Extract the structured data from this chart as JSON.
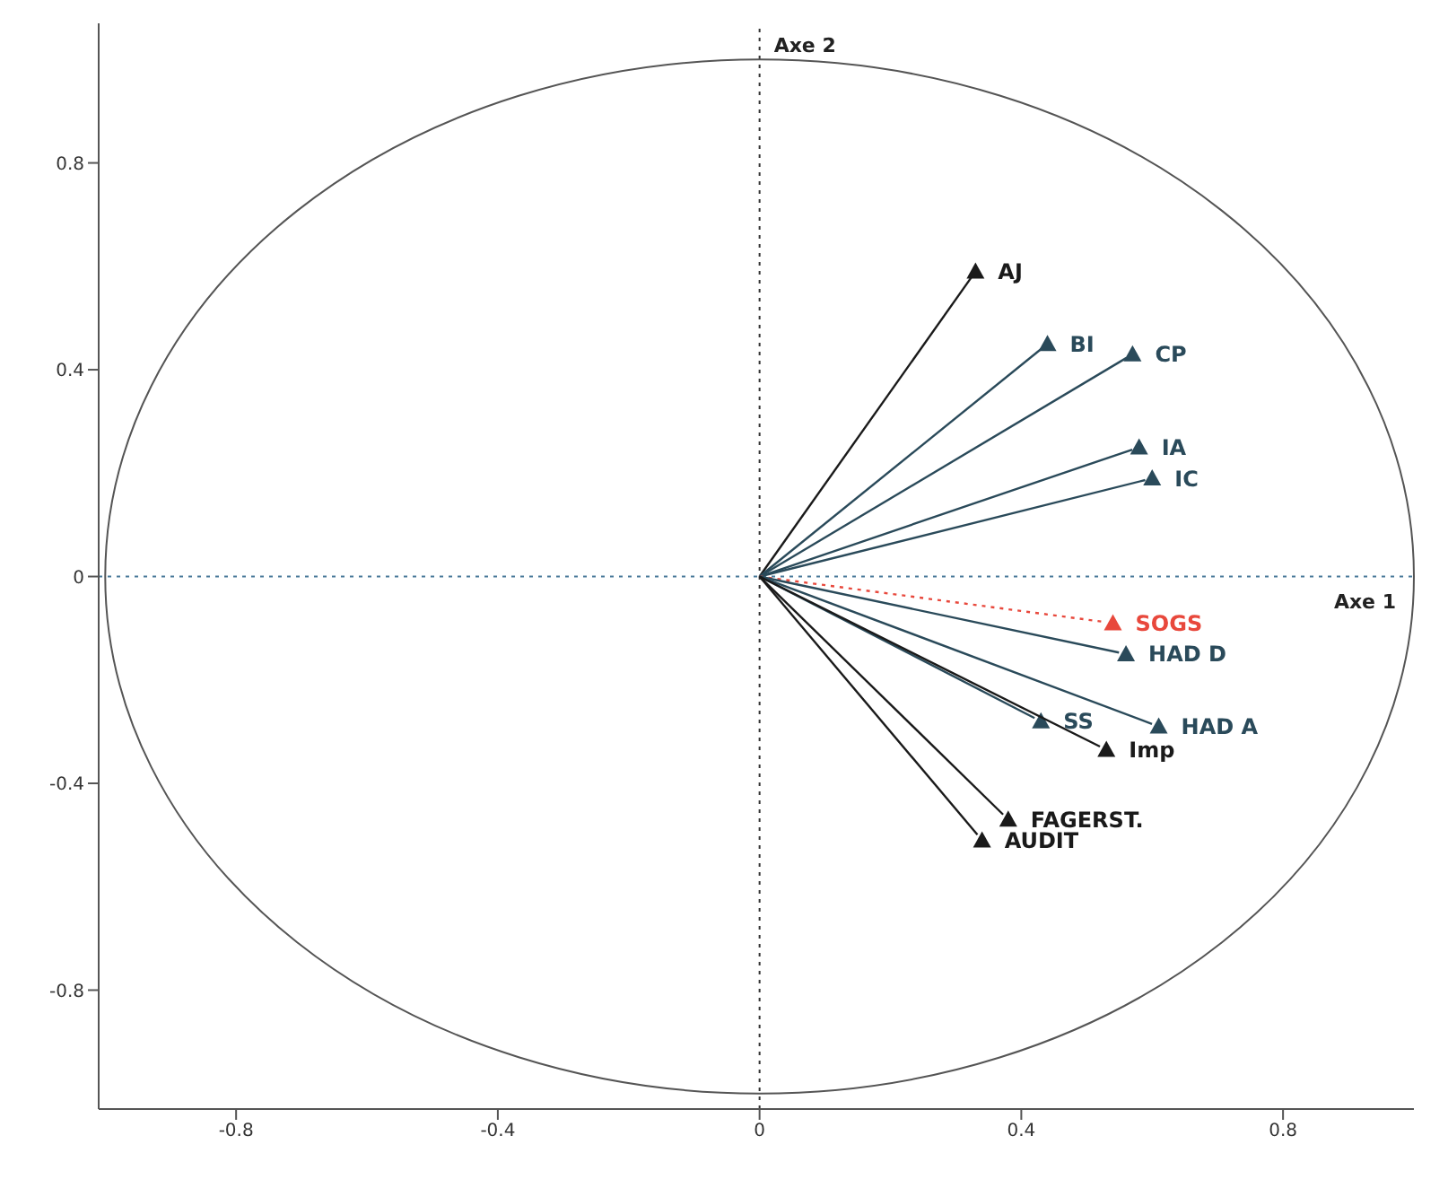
{
  "chart_data": {
    "type": "scatter",
    "marker": "triangle",
    "xlim": [
      -1.01,
      1.0
    ],
    "ylim": [
      -1.03,
      1.07
    ],
    "xticks": [
      -0.8,
      -0.4,
      0,
      0.4,
      0.8
    ],
    "yticks": [
      -0.8,
      -0.4,
      0,
      0.4,
      0.8
    ],
    "series": [
      {
        "name": "AJ",
        "color": "#1a1a1a",
        "x": [
          0.33
        ],
        "values": [
          0.59
        ]
      },
      {
        "name": "BI",
        "color": "#2a4a5a",
        "x": [
          0.44
        ],
        "values": [
          0.45
        ]
      },
      {
        "name": "CP",
        "color": "#2a4a5a",
        "x": [
          0.57
        ],
        "values": [
          0.43
        ]
      },
      {
        "name": "IA",
        "color": "#2a4a5a",
        "x": [
          0.58
        ],
        "values": [
          0.25
        ]
      },
      {
        "name": "IC",
        "color": "#2a4a5a",
        "x": [
          0.6
        ],
        "values": [
          0.19
        ]
      },
      {
        "name": "SOGS",
        "color": "#e8483c",
        "line_style": "dotted",
        "x": [
          0.54
        ],
        "values": [
          -0.09
        ]
      },
      {
        "name": "HAD D",
        "color": "#2a4a5a",
        "x": [
          0.56
        ],
        "values": [
          -0.15
        ]
      },
      {
        "name": "HAD A",
        "color": "#2a4a5a",
        "x": [
          0.61
        ],
        "values": [
          -0.29
        ]
      },
      {
        "name": "SS",
        "color": "#2a4a5a",
        "x": [
          0.43
        ],
        "values": [
          -0.28
        ]
      },
      {
        "name": "Imp",
        "color": "#1a1a1a",
        "x": [
          0.53
        ],
        "values": [
          -0.335
        ]
      },
      {
        "name": "FAGERST.",
        "color": "#1a1a1a",
        "x": [
          0.38
        ],
        "values": [
          -0.47
        ]
      },
      {
        "name": "AUDIT",
        "color": "#1a1a1a",
        "x": [
          0.34
        ],
        "values": [
          -0.51
        ]
      }
    ],
    "ref_lines": [
      {
        "axis": "x",
        "value": 0,
        "label": "Axe 2",
        "line_style": "dotted",
        "color": "#333333"
      },
      {
        "axis": "y",
        "value": 0,
        "label": "Axe 1",
        "line_style": "dotted",
        "color": "#4a7a9a"
      }
    ]
  }
}
